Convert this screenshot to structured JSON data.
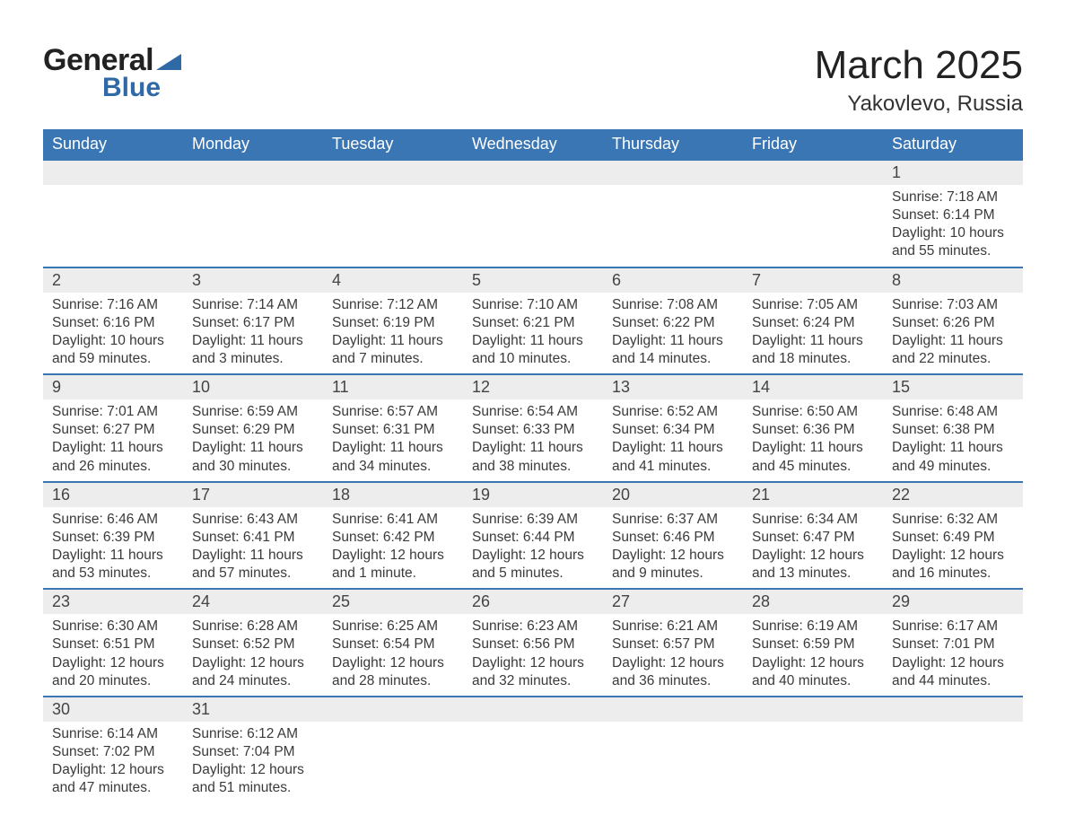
{
  "logo": {
    "word1": "General",
    "word2": "Blue"
  },
  "title": "March 2025",
  "subtitle": "Yakovlevo, Russia",
  "colors": {
    "header_bg": "#3a76b4",
    "header_text": "#ffffff",
    "daynum_bg": "#ededed",
    "border": "#3a76b4",
    "body_text": "#3a3a3a",
    "logo_blue": "#2f69a6"
  },
  "day_names": [
    "Sunday",
    "Monday",
    "Tuesday",
    "Wednesday",
    "Thursday",
    "Friday",
    "Saturday"
  ],
  "weeks": [
    [
      null,
      null,
      null,
      null,
      null,
      null,
      {
        "n": "1",
        "sr": "Sunrise: 7:18 AM",
        "ss": "Sunset: 6:14 PM",
        "d1": "Daylight: 10 hours",
        "d2": "and 55 minutes."
      }
    ],
    [
      {
        "n": "2",
        "sr": "Sunrise: 7:16 AM",
        "ss": "Sunset: 6:16 PM",
        "d1": "Daylight: 10 hours",
        "d2": "and 59 minutes."
      },
      {
        "n": "3",
        "sr": "Sunrise: 7:14 AM",
        "ss": "Sunset: 6:17 PM",
        "d1": "Daylight: 11 hours",
        "d2": "and 3 minutes."
      },
      {
        "n": "4",
        "sr": "Sunrise: 7:12 AM",
        "ss": "Sunset: 6:19 PM",
        "d1": "Daylight: 11 hours",
        "d2": "and 7 minutes."
      },
      {
        "n": "5",
        "sr": "Sunrise: 7:10 AM",
        "ss": "Sunset: 6:21 PM",
        "d1": "Daylight: 11 hours",
        "d2": "and 10 minutes."
      },
      {
        "n": "6",
        "sr": "Sunrise: 7:08 AM",
        "ss": "Sunset: 6:22 PM",
        "d1": "Daylight: 11 hours",
        "d2": "and 14 minutes."
      },
      {
        "n": "7",
        "sr": "Sunrise: 7:05 AM",
        "ss": "Sunset: 6:24 PM",
        "d1": "Daylight: 11 hours",
        "d2": "and 18 minutes."
      },
      {
        "n": "8",
        "sr": "Sunrise: 7:03 AM",
        "ss": "Sunset: 6:26 PM",
        "d1": "Daylight: 11 hours",
        "d2": "and 22 minutes."
      }
    ],
    [
      {
        "n": "9",
        "sr": "Sunrise: 7:01 AM",
        "ss": "Sunset: 6:27 PM",
        "d1": "Daylight: 11 hours",
        "d2": "and 26 minutes."
      },
      {
        "n": "10",
        "sr": "Sunrise: 6:59 AM",
        "ss": "Sunset: 6:29 PM",
        "d1": "Daylight: 11 hours",
        "d2": "and 30 minutes."
      },
      {
        "n": "11",
        "sr": "Sunrise: 6:57 AM",
        "ss": "Sunset: 6:31 PM",
        "d1": "Daylight: 11 hours",
        "d2": "and 34 minutes."
      },
      {
        "n": "12",
        "sr": "Sunrise: 6:54 AM",
        "ss": "Sunset: 6:33 PM",
        "d1": "Daylight: 11 hours",
        "d2": "and 38 minutes."
      },
      {
        "n": "13",
        "sr": "Sunrise: 6:52 AM",
        "ss": "Sunset: 6:34 PM",
        "d1": "Daylight: 11 hours",
        "d2": "and 41 minutes."
      },
      {
        "n": "14",
        "sr": "Sunrise: 6:50 AM",
        "ss": "Sunset: 6:36 PM",
        "d1": "Daylight: 11 hours",
        "d2": "and 45 minutes."
      },
      {
        "n": "15",
        "sr": "Sunrise: 6:48 AM",
        "ss": "Sunset: 6:38 PM",
        "d1": "Daylight: 11 hours",
        "d2": "and 49 minutes."
      }
    ],
    [
      {
        "n": "16",
        "sr": "Sunrise: 6:46 AM",
        "ss": "Sunset: 6:39 PM",
        "d1": "Daylight: 11 hours",
        "d2": "and 53 minutes."
      },
      {
        "n": "17",
        "sr": "Sunrise: 6:43 AM",
        "ss": "Sunset: 6:41 PM",
        "d1": "Daylight: 11 hours",
        "d2": "and 57 minutes."
      },
      {
        "n": "18",
        "sr": "Sunrise: 6:41 AM",
        "ss": "Sunset: 6:42 PM",
        "d1": "Daylight: 12 hours",
        "d2": "and 1 minute."
      },
      {
        "n": "19",
        "sr": "Sunrise: 6:39 AM",
        "ss": "Sunset: 6:44 PM",
        "d1": "Daylight: 12 hours",
        "d2": "and 5 minutes."
      },
      {
        "n": "20",
        "sr": "Sunrise: 6:37 AM",
        "ss": "Sunset: 6:46 PM",
        "d1": "Daylight: 12 hours",
        "d2": "and 9 minutes."
      },
      {
        "n": "21",
        "sr": "Sunrise: 6:34 AM",
        "ss": "Sunset: 6:47 PM",
        "d1": "Daylight: 12 hours",
        "d2": "and 13 minutes."
      },
      {
        "n": "22",
        "sr": "Sunrise: 6:32 AM",
        "ss": "Sunset: 6:49 PM",
        "d1": "Daylight: 12 hours",
        "d2": "and 16 minutes."
      }
    ],
    [
      {
        "n": "23",
        "sr": "Sunrise: 6:30 AM",
        "ss": "Sunset: 6:51 PM",
        "d1": "Daylight: 12 hours",
        "d2": "and 20 minutes."
      },
      {
        "n": "24",
        "sr": "Sunrise: 6:28 AM",
        "ss": "Sunset: 6:52 PM",
        "d1": "Daylight: 12 hours",
        "d2": "and 24 minutes."
      },
      {
        "n": "25",
        "sr": "Sunrise: 6:25 AM",
        "ss": "Sunset: 6:54 PM",
        "d1": "Daylight: 12 hours",
        "d2": "and 28 minutes."
      },
      {
        "n": "26",
        "sr": "Sunrise: 6:23 AM",
        "ss": "Sunset: 6:56 PM",
        "d1": "Daylight: 12 hours",
        "d2": "and 32 minutes."
      },
      {
        "n": "27",
        "sr": "Sunrise: 6:21 AM",
        "ss": "Sunset: 6:57 PM",
        "d1": "Daylight: 12 hours",
        "d2": "and 36 minutes."
      },
      {
        "n": "28",
        "sr": "Sunrise: 6:19 AM",
        "ss": "Sunset: 6:59 PM",
        "d1": "Daylight: 12 hours",
        "d2": "and 40 minutes."
      },
      {
        "n": "29",
        "sr": "Sunrise: 6:17 AM",
        "ss": "Sunset: 7:01 PM",
        "d1": "Daylight: 12 hours",
        "d2": "and 44 minutes."
      }
    ],
    [
      {
        "n": "30",
        "sr": "Sunrise: 6:14 AM",
        "ss": "Sunset: 7:02 PM",
        "d1": "Daylight: 12 hours",
        "d2": "and 47 minutes."
      },
      {
        "n": "31",
        "sr": "Sunrise: 6:12 AM",
        "ss": "Sunset: 7:04 PM",
        "d1": "Daylight: 12 hours",
        "d2": "and 51 minutes."
      },
      null,
      null,
      null,
      null,
      null
    ]
  ]
}
